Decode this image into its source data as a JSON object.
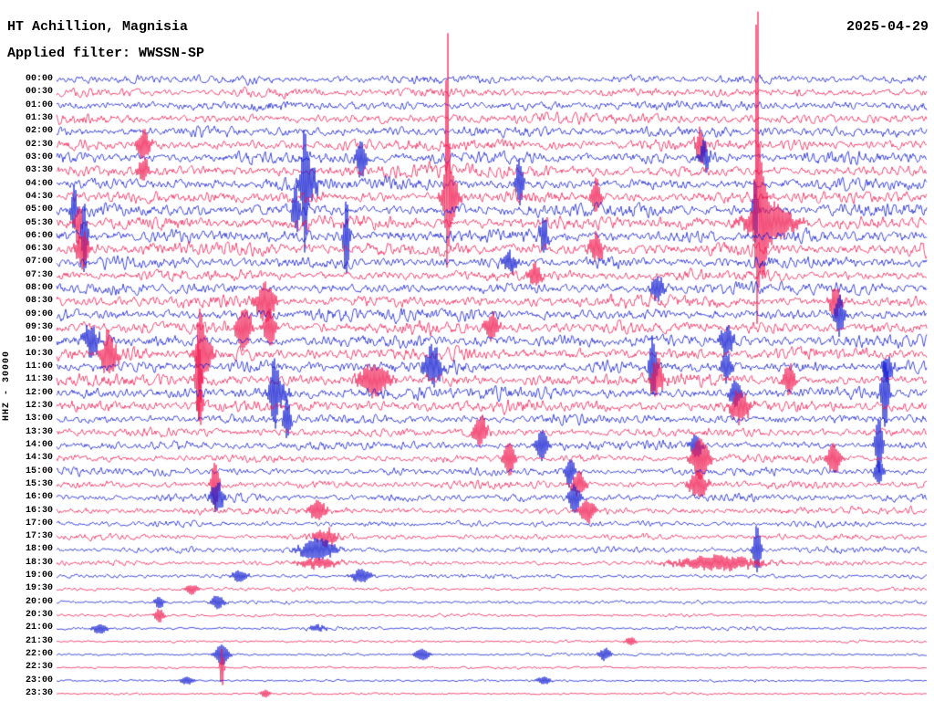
{
  "header": {
    "station": "HT Achillion, Magnisia",
    "filter_label": "Applied filter: WWSSN-SP",
    "date": "2025-04-29"
  },
  "axis": {
    "left_label": "HHZ - 30000",
    "minutes_per_row": 30,
    "time_start": "00:00",
    "time_end": "23:30"
  },
  "chart_data": {
    "type": "line",
    "subtype": "helicorder-seismogram",
    "title": "HT Achillion, Magnisia",
    "date": "2025-04-29",
    "filter": "WWSSN-SP",
    "channel": "HHZ",
    "scale": 30000,
    "background": "#ffffff",
    "trace_colors": {
      "even_rows": "#0b16cf",
      "odd_rows": "#ef154d"
    },
    "label_color": "#000000",
    "rows": [
      {
        "time": "00:00",
        "amp": 5.0
      },
      {
        "time": "00:30",
        "amp": 5.0
      },
      {
        "time": "01:00",
        "amp": 5.5
      },
      {
        "time": "01:30",
        "amp": 6.0
      },
      {
        "time": "02:00",
        "amp": 6.0
      },
      {
        "time": "02:30",
        "amp": 6.5
      },
      {
        "time": "03:00",
        "amp": 7.0
      },
      {
        "time": "03:30",
        "amp": 7.0
      },
      {
        "time": "04:00",
        "amp": 7.0
      },
      {
        "time": "04:30",
        "amp": 7.0
      },
      {
        "time": "05:00",
        "amp": 7.5
      },
      {
        "time": "05:30",
        "amp": 7.5
      },
      {
        "time": "06:00",
        "amp": 7.5
      },
      {
        "time": "06:30",
        "amp": 7.5
      },
      {
        "time": "07:00",
        "amp": 6.5
      },
      {
        "time": "07:30",
        "amp": 6.0
      },
      {
        "time": "08:00",
        "amp": 6.5
      },
      {
        "time": "08:30",
        "amp": 7.0
      },
      {
        "time": "09:00",
        "amp": 7.0
      },
      {
        "time": "09:30",
        "amp": 7.0
      },
      {
        "time": "10:00",
        "amp": 7.0
      },
      {
        "time": "10:30",
        "amp": 7.0
      },
      {
        "time": "11:00",
        "amp": 7.0
      },
      {
        "time": "11:30",
        "amp": 7.0
      },
      {
        "time": "12:00",
        "amp": 7.0
      },
      {
        "time": "12:30",
        "amp": 7.0
      },
      {
        "time": "13:00",
        "amp": 5.5
      },
      {
        "time": "13:30",
        "amp": 5.0
      },
      {
        "time": "14:00",
        "amp": 5.0
      },
      {
        "time": "14:30",
        "amp": 4.5
      },
      {
        "time": "15:00",
        "amp": 4.5
      },
      {
        "time": "15:30",
        "amp": 4.5
      },
      {
        "time": "16:00",
        "amp": 4.5
      },
      {
        "time": "16:30",
        "amp": 4.0
      },
      {
        "time": "17:00",
        "amp": 3.5
      },
      {
        "time": "17:30",
        "amp": 3.5
      },
      {
        "time": "18:00",
        "amp": 3.5
      },
      {
        "time": "18:30",
        "amp": 3.0
      },
      {
        "time": "19:00",
        "amp": 2.5
      },
      {
        "time": "19:30",
        "amp": 2.0
      },
      {
        "time": "20:00",
        "amp": 2.0
      },
      {
        "time": "20:30",
        "amp": 1.8
      },
      {
        "time": "21:00",
        "amp": 1.8
      },
      {
        "time": "21:30",
        "amp": 1.5
      },
      {
        "time": "22:00",
        "amp": 1.6
      },
      {
        "time": "22:30",
        "amp": 1.3
      },
      {
        "time": "23:00",
        "amp": 1.3
      },
      {
        "time": "23:30",
        "amp": 1.2
      }
    ],
    "events": [
      {
        "row": 9,
        "x": 0.449,
        "amp": 170,
        "w": 2
      },
      {
        "row": 9,
        "x": 0.452,
        "amp": 30,
        "w": 8
      },
      {
        "row": 9,
        "x": 0.62,
        "amp": 18,
        "w": 5
      },
      {
        "row": 11,
        "x": 0.805,
        "amp": 240,
        "w": 2
      },
      {
        "row": 11,
        "x": 0.81,
        "amp": 45,
        "w": 6
      },
      {
        "row": 11,
        "x": 0.82,
        "amp": 18,
        "w": 25
      },
      {
        "row": 10,
        "x": 0.803,
        "amp": 35,
        "w": 3
      },
      {
        "row": 8,
        "x": 0.285,
        "amp": 55,
        "w": 3
      },
      {
        "row": 8,
        "x": 0.29,
        "amp": 18,
        "w": 9
      },
      {
        "row": 10,
        "x": 0.275,
        "amp": 25,
        "w": 4
      },
      {
        "row": 12,
        "x": 0.333,
        "amp": 42,
        "w": 3
      },
      {
        "row": 12,
        "x": 0.032,
        "amp": 40,
        "w": 3
      },
      {
        "row": 13,
        "x": 0.03,
        "amp": 18,
        "w": 7
      },
      {
        "row": 10,
        "x": 0.02,
        "amp": 25,
        "w": 3
      },
      {
        "row": 11,
        "x": 0.025,
        "amp": 20,
        "w": 4
      },
      {
        "row": 8,
        "x": 0.532,
        "amp": 25,
        "w": 4
      },
      {
        "row": 5,
        "x": 0.74,
        "amp": 18,
        "w": 5
      },
      {
        "row": 6,
        "x": 0.745,
        "amp": 15,
        "w": 5
      },
      {
        "row": 5,
        "x": 0.1,
        "amp": 15,
        "w": 7
      },
      {
        "row": 7,
        "x": 0.1,
        "amp": 12,
        "w": 6
      },
      {
        "row": 6,
        "x": 0.35,
        "amp": 20,
        "w": 5
      },
      {
        "row": 12,
        "x": 0.56,
        "amp": 20,
        "w": 4
      },
      {
        "row": 13,
        "x": 0.62,
        "amp": 15,
        "w": 7
      },
      {
        "row": 14,
        "x": 0.52,
        "amp": 10,
        "w": 7
      },
      {
        "row": 15,
        "x": 0.55,
        "amp": 12,
        "w": 7
      },
      {
        "row": 16,
        "x": 0.69,
        "amp": 12,
        "w": 7
      },
      {
        "row": 17,
        "x": 0.24,
        "amp": 20,
        "w": 10
      },
      {
        "row": 19,
        "x": 0.215,
        "amp": 22,
        "w": 8
      },
      {
        "row": 19,
        "x": 0.245,
        "amp": 20,
        "w": 6
      },
      {
        "row": 19,
        "x": 0.5,
        "amp": 14,
        "w": 7
      },
      {
        "row": 17,
        "x": 0.895,
        "amp": 16,
        "w": 6
      },
      {
        "row": 18,
        "x": 0.9,
        "amp": 22,
        "w": 5
      },
      {
        "row": 20,
        "x": 0.77,
        "amp": 15,
        "w": 7
      },
      {
        "row": 21,
        "x": 0.165,
        "amp": 38,
        "w": 3
      },
      {
        "row": 21,
        "x": 0.17,
        "amp": 18,
        "w": 9
      },
      {
        "row": 23,
        "x": 0.163,
        "amp": 45,
        "w": 3
      },
      {
        "row": 25,
        "x": 0.165,
        "amp": 20,
        "w": 3
      },
      {
        "row": 21,
        "x": 0.06,
        "amp": 22,
        "w": 8
      },
      {
        "row": 20,
        "x": 0.04,
        "amp": 15,
        "w": 8
      },
      {
        "row": 24,
        "x": 0.25,
        "amp": 28,
        "w": 4
      },
      {
        "row": 24,
        "x": 0.255,
        "amp": 12,
        "w": 10
      },
      {
        "row": 26,
        "x": 0.265,
        "amp": 22,
        "w": 4
      },
      {
        "row": 23,
        "x": 0.365,
        "amp": 16,
        "w": 16
      },
      {
        "row": 22,
        "x": 0.432,
        "amp": 20,
        "w": 9
      },
      {
        "row": 22,
        "x": 0.685,
        "amp": 32,
        "w": 4
      },
      {
        "row": 23,
        "x": 0.69,
        "amp": 18,
        "w": 7
      },
      {
        "row": 22,
        "x": 0.77,
        "amp": 14,
        "w": 6
      },
      {
        "row": 25,
        "x": 0.785,
        "amp": 16,
        "w": 10
      },
      {
        "row": 24,
        "x": 0.78,
        "amp": 14,
        "w": 6
      },
      {
        "row": 23,
        "x": 0.842,
        "amp": 16,
        "w": 6
      },
      {
        "row": 24,
        "x": 0.952,
        "amp": 37,
        "w": 4
      },
      {
        "row": 22,
        "x": 0.955,
        "amp": 14,
        "w": 5
      },
      {
        "row": 27,
        "x": 0.487,
        "amp": 16,
        "w": 7
      },
      {
        "row": 29,
        "x": 0.52,
        "amp": 18,
        "w": 6
      },
      {
        "row": 28,
        "x": 0.558,
        "amp": 16,
        "w": 6
      },
      {
        "row": 30,
        "x": 0.59,
        "amp": 15,
        "w": 5
      },
      {
        "row": 31,
        "x": 0.6,
        "amp": 12,
        "w": 7
      },
      {
        "row": 29,
        "x": 0.74,
        "amp": 22,
        "w": 9
      },
      {
        "row": 28,
        "x": 0.735,
        "amp": 12,
        "w": 6
      },
      {
        "row": 29,
        "x": 0.893,
        "amp": 16,
        "w": 7
      },
      {
        "row": 28,
        "x": 0.945,
        "amp": 30,
        "w": 4
      },
      {
        "row": 30,
        "x": 0.945,
        "amp": 12,
        "w": 5
      },
      {
        "row": 31,
        "x": 0.182,
        "amp": 26,
        "w": 4
      },
      {
        "row": 32,
        "x": 0.185,
        "amp": 15,
        "w": 7
      },
      {
        "row": 33,
        "x": 0.3,
        "amp": 10,
        "w": 9
      },
      {
        "row": 32,
        "x": 0.595,
        "amp": 15,
        "w": 6
      },
      {
        "row": 33,
        "x": 0.61,
        "amp": 12,
        "w": 8
      },
      {
        "row": 31,
        "x": 0.737,
        "amp": 14,
        "w": 9
      },
      {
        "row": 36,
        "x": 0.3,
        "amp": 11,
        "w": 18
      },
      {
        "row": 35,
        "x": 0.31,
        "amp": 8,
        "w": 12
      },
      {
        "row": 36,
        "x": 0.805,
        "amp": 26,
        "w": 4
      },
      {
        "row": 37,
        "x": 0.76,
        "amp": 7,
        "w": 45
      },
      {
        "row": 37,
        "x": 0.3,
        "amp": 5,
        "w": 20
      },
      {
        "row": 38,
        "x": 0.35,
        "amp": 7,
        "w": 10
      },
      {
        "row": 38,
        "x": 0.21,
        "amp": 6,
        "w": 8
      },
      {
        "row": 39,
        "x": 0.155,
        "amp": 5,
        "w": 7
      },
      {
        "row": 40,
        "x": 0.118,
        "amp": 6,
        "w": 5
      },
      {
        "row": 40,
        "x": 0.185,
        "amp": 7,
        "w": 7
      },
      {
        "row": 41,
        "x": 0.118,
        "amp": 7,
        "w": 5
      },
      {
        "row": 42,
        "x": 0.05,
        "amp": 5,
        "w": 8
      },
      {
        "row": 42,
        "x": 0.3,
        "amp": 3,
        "w": 10
      },
      {
        "row": 43,
        "x": 0.66,
        "amp": 4,
        "w": 6
      },
      {
        "row": 44,
        "x": 0.19,
        "amp": 11,
        "w": 7
      },
      {
        "row": 44,
        "x": 0.42,
        "amp": 6,
        "w": 8
      },
      {
        "row": 44,
        "x": 0.63,
        "amp": 6,
        "w": 7
      },
      {
        "row": 45,
        "x": 0.19,
        "amp": 22,
        "w": 2
      },
      {
        "row": 46,
        "x": 0.15,
        "amp": 4,
        "w": 7
      },
      {
        "row": 46,
        "x": 0.56,
        "amp": 4,
        "w": 7
      },
      {
        "row": 47,
        "x": 0.24,
        "amp": 4,
        "w": 5
      }
    ]
  }
}
